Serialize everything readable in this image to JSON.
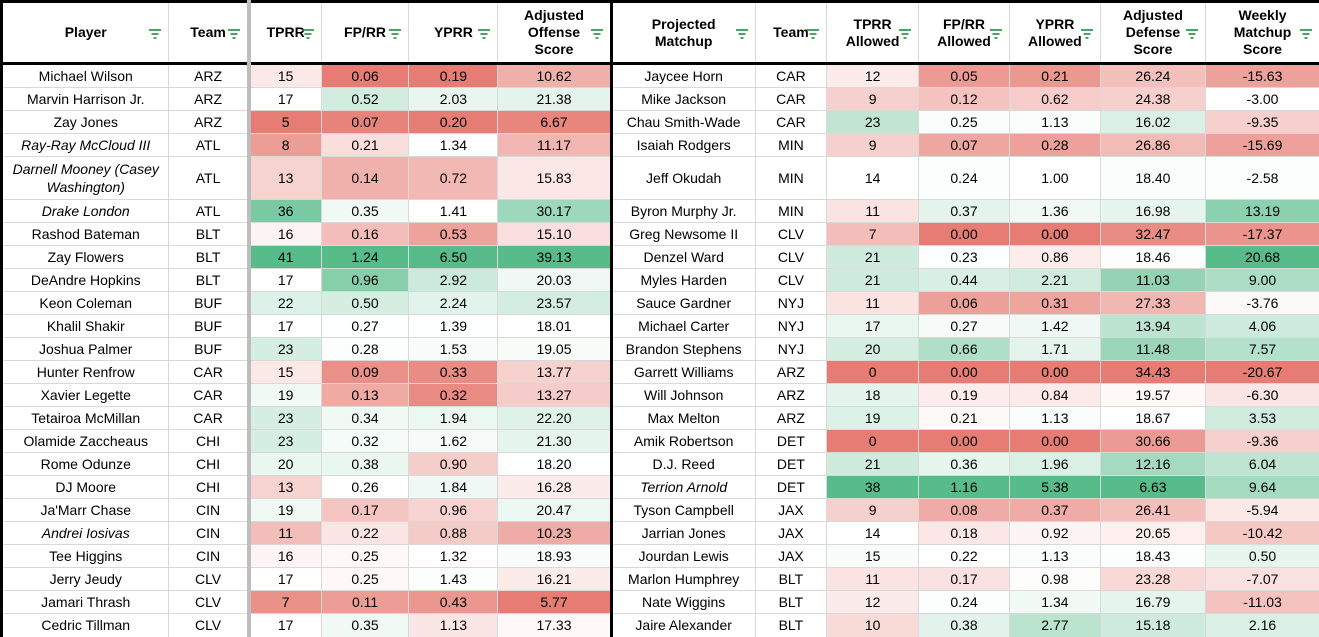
{
  "headers": {
    "player": "Player",
    "team": "Team",
    "tprr": "TPRR",
    "fprr": "FP/RR",
    "yprr": "YPRR",
    "adj_offense": "Adjusted Offense Score",
    "proj_matchup": "Projected Matchup",
    "team2": "Team",
    "tprr_allowed": "TPRR Allowed",
    "fprr_allowed": "FP/RR Allowed",
    "yprr_allowed": "YPRR Allowed",
    "adj_defense": "Adjusted Defense Score",
    "weekly_matchup": "Weekly Matchup Score"
  },
  "rows": [
    {
      "player": "Michael Wilson",
      "team": "ARZ",
      "tprr": "15",
      "fprr": "0.06",
      "yprr": "0.19",
      "off": "10.62",
      "matchup": "Jaycee Horn",
      "team2": "CAR",
      "tprr_a": "12",
      "fprr_a": "0.05",
      "yprr_a": "0.21",
      "def": "26.24",
      "score": "-15.63"
    },
    {
      "player": "Marvin Harrison Jr.",
      "team": "ARZ",
      "tprr": "17",
      "fprr": "0.52",
      "yprr": "2.03",
      "off": "21.38",
      "matchup": "Mike Jackson",
      "team2": "CAR",
      "tprr_a": "9",
      "fprr_a": "0.12",
      "yprr_a": "0.62",
      "def": "24.38",
      "score": "-3.00"
    },
    {
      "player": "Zay Jones",
      "team": "ARZ",
      "tprr": "5",
      "fprr": "0.07",
      "yprr": "0.20",
      "off": "6.67",
      "matchup": "Chau Smith-Wade",
      "team2": "CAR",
      "tprr_a": "23",
      "fprr_a": "0.25",
      "yprr_a": "1.13",
      "def": "16.02",
      "score": "-9.35"
    },
    {
      "player": "Ray-Ray McCloud III",
      "team": "ATL",
      "tprr": "8",
      "fprr": "0.21",
      "yprr": "1.34",
      "off": "11.17",
      "matchup": "Isaiah Rodgers",
      "team2": "MIN",
      "tprr_a": "9",
      "fprr_a": "0.07",
      "yprr_a": "0.28",
      "def": "26.86",
      "score": "-15.69"
    },
    {
      "player": "Darnell Mooney (Casey Washington)",
      "team": "ATL",
      "tprr": "13",
      "fprr": "0.14",
      "yprr": "0.72",
      "off": "15.83",
      "matchup": "Jeff Okudah",
      "team2": "MIN",
      "tprr_a": "14",
      "fprr_a": "0.24",
      "yprr_a": "1.00",
      "def": "18.40",
      "score": "-2.58"
    },
    {
      "player": "Drake London",
      "team": "ATL",
      "tprr": "36",
      "fprr": "0.35",
      "yprr": "1.41",
      "off": "30.17",
      "matchup": "Byron Murphy Jr.",
      "team2": "MIN",
      "tprr_a": "11",
      "fprr_a": "0.37",
      "yprr_a": "1.36",
      "def": "16.98",
      "score": "13.19"
    },
    {
      "player": "Rashod Bateman",
      "team": "BLT",
      "tprr": "16",
      "fprr": "0.16",
      "yprr": "0.53",
      "off": "15.10",
      "matchup": "Greg Newsome II",
      "team2": "CLV",
      "tprr_a": "7",
      "fprr_a": "0.00",
      "yprr_a": "0.00",
      "def": "32.47",
      "score": "-17.37"
    },
    {
      "player": "Zay Flowers",
      "team": "BLT",
      "tprr": "41",
      "fprr": "1.24",
      "yprr": "6.50",
      "off": "39.13",
      "matchup": "Denzel Ward",
      "team2": "CLV",
      "tprr_a": "21",
      "fprr_a": "0.23",
      "yprr_a": "0.86",
      "def": "18.46",
      "score": "20.68"
    },
    {
      "player": "DeAndre Hopkins",
      "team": "BLT",
      "tprr": "17",
      "fprr": "0.96",
      "yprr": "2.92",
      "off": "20.03",
      "matchup": "Myles Harden",
      "team2": "CLV",
      "tprr_a": "21",
      "fprr_a": "0.44",
      "yprr_a": "2.21",
      "def": "11.03",
      "score": "9.00"
    },
    {
      "player": "Keon Coleman",
      "team": "BUF",
      "tprr": "22",
      "fprr": "0.50",
      "yprr": "2.24",
      "off": "23.57",
      "matchup": "Sauce Gardner",
      "team2": "NYJ",
      "tprr_a": "11",
      "fprr_a": "0.06",
      "yprr_a": "0.31",
      "def": "27.33",
      "score": "-3.76"
    },
    {
      "player": "Khalil Shakir",
      "team": "BUF",
      "tprr": "17",
      "fprr": "0.27",
      "yprr": "1.39",
      "off": "18.01",
      "matchup": "Michael Carter",
      "team2": "NYJ",
      "tprr_a": "17",
      "fprr_a": "0.27",
      "yprr_a": "1.42",
      "def": "13.94",
      "score": "4.06"
    },
    {
      "player": "Joshua Palmer",
      "team": "BUF",
      "tprr": "23",
      "fprr": "0.28",
      "yprr": "1.53",
      "off": "19.05",
      "matchup": "Brandon Stephens",
      "team2": "NYJ",
      "tprr_a": "20",
      "fprr_a": "0.66",
      "yprr_a": "1.71",
      "def": "11.48",
      "score": "7.57"
    },
    {
      "player": "Hunter Renfrow",
      "team": "CAR",
      "tprr": "15",
      "fprr": "0.09",
      "yprr": "0.33",
      "off": "13.77",
      "matchup": "Garrett Williams",
      "team2": "ARZ",
      "tprr_a": "0",
      "fprr_a": "0.00",
      "yprr_a": "0.00",
      "def": "34.43",
      "score": "-20.67"
    },
    {
      "player": "Xavier Legette",
      "team": "CAR",
      "tprr": "19",
      "fprr": "0.13",
      "yprr": "0.32",
      "off": "13.27",
      "matchup": "Will Johnson",
      "team2": "ARZ",
      "tprr_a": "18",
      "fprr_a": "0.19",
      "yprr_a": "0.84",
      "def": "19.57",
      "score": "-6.30"
    },
    {
      "player": "Tetairoa McMillan",
      "team": "CAR",
      "tprr": "23",
      "fprr": "0.34",
      "yprr": "1.94",
      "off": "22.20",
      "matchup": "Max Melton",
      "team2": "ARZ",
      "tprr_a": "19",
      "fprr_a": "0.21",
      "yprr_a": "1.13",
      "def": "18.67",
      "score": "3.53"
    },
    {
      "player": "Olamide Zaccheaus",
      "team": "CHI",
      "tprr": "23",
      "fprr": "0.32",
      "yprr": "1.62",
      "off": "21.30",
      "matchup": "Amik Robertson",
      "team2": "DET",
      "tprr_a": "0",
      "fprr_a": "0.00",
      "yprr_a": "0.00",
      "def": "30.66",
      "score": "-9.36"
    },
    {
      "player": "Rome Odunze",
      "team": "CHI",
      "tprr": "20",
      "fprr": "0.38",
      "yprr": "0.90",
      "off": "18.20",
      "matchup": "D.J. Reed",
      "team2": "DET",
      "tprr_a": "21",
      "fprr_a": "0.36",
      "yprr_a": "1.96",
      "def": "12.16",
      "score": "6.04"
    },
    {
      "player": "DJ Moore",
      "team": "CHI",
      "tprr": "13",
      "fprr": "0.26",
      "yprr": "1.84",
      "off": "16.28",
      "matchup": "Terrion Arnold",
      "team2": "DET",
      "tprr_a": "38",
      "fprr_a": "1.16",
      "yprr_a": "5.38",
      "def": "6.63",
      "score": "9.64"
    },
    {
      "player": "Ja'Marr Chase",
      "team": "CIN",
      "tprr": "19",
      "fprr": "0.17",
      "yprr": "0.96",
      "off": "20.47",
      "matchup": "Tyson Campbell",
      "team2": "JAX",
      "tprr_a": "9",
      "fprr_a": "0.08",
      "yprr_a": "0.37",
      "def": "26.41",
      "score": "-5.94"
    },
    {
      "player": "Andrei Iosivas",
      "team": "CIN",
      "tprr": "11",
      "fprr": "0.22",
      "yprr": "0.88",
      "off": "10.23",
      "matchup": "Jarrian Jones",
      "team2": "JAX",
      "tprr_a": "14",
      "fprr_a": "0.18",
      "yprr_a": "0.92",
      "def": "20.65",
      "score": "-10.42"
    },
    {
      "player": "Tee Higgins",
      "team": "CIN",
      "tprr": "16",
      "fprr": "0.25",
      "yprr": "1.32",
      "off": "18.93",
      "matchup": "Jourdan Lewis",
      "team2": "JAX",
      "tprr_a": "15",
      "fprr_a": "0.22",
      "yprr_a": "1.13",
      "def": "18.43",
      "score": "0.50"
    },
    {
      "player": "Jerry Jeudy",
      "team": "CLV",
      "tprr": "17",
      "fprr": "0.25",
      "yprr": "1.43",
      "off": "16.21",
      "matchup": "Marlon Humphrey",
      "team2": "BLT",
      "tprr_a": "11",
      "fprr_a": "0.17",
      "yprr_a": "0.98",
      "def": "23.28",
      "score": "-7.07"
    },
    {
      "player": "Jamari Thrash",
      "team": "CLV",
      "tprr": "7",
      "fprr": "0.11",
      "yprr": "0.43",
      "off": "5.77",
      "matchup": "Nate Wiggins",
      "team2": "BLT",
      "tprr_a": "12",
      "fprr_a": "0.24",
      "yprr_a": "1.34",
      "def": "16.79",
      "score": "-11.03"
    },
    {
      "player": "Cedric Tillman",
      "team": "CLV",
      "tprr": "17",
      "fprr": "0.35",
      "yprr": "1.13",
      "off": "17.33",
      "matchup": "Jaire Alexander",
      "team2": "BLT",
      "tprr_a": "10",
      "fprr_a": "0.38",
      "yprr_a": "2.77",
      "def": "15.18",
      "score": "2.16"
    }
  ],
  "italic_players": [
    "Ray-Ray McCloud III",
    "Darnell Mooney (Casey Washington)",
    "Drake London",
    "Andrei Iosivas"
  ],
  "italic_matchups": [
    "Terrion Arnold"
  ],
  "colors": {
    "red_strong": "#e67c73",
    "white": "#ffffff",
    "green_strong": "#57bb8a",
    "filter_icon": "#1e8e3e",
    "border": "#d9d9d9"
  }
}
